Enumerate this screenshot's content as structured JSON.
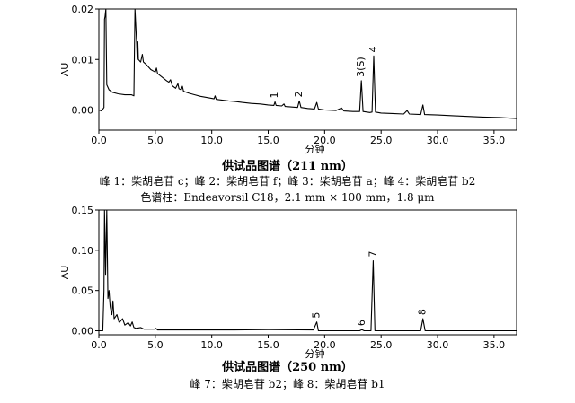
{
  "chart_data": [
    {
      "type": "line",
      "title": "供试品图谱（211 nm）",
      "xlabel": "分钟",
      "ylabel": "AU",
      "xlim": [
        0,
        37
      ],
      "ylim": [
        -0.004,
        0.02
      ],
      "x_ticks": [
        "0.0",
        "5.0",
        "10.0",
        "15.0",
        "20.0",
        "25.0",
        "30.0",
        "35.0"
      ],
      "y_ticks": [
        "0.00",
        "0.01",
        "0.02"
      ],
      "grid": false,
      "series": [
        {
          "values": [
            [
              0,
              0
            ],
            [
              0.25,
              -0.0002
            ],
            [
              0.45,
              0.0005
            ],
            [
              0.5,
              0.018
            ],
            [
              0.55,
              0.0185
            ],
            [
              0.62,
              0.02
            ],
            [
              0.7,
              0.005
            ],
            [
              0.9,
              0.004
            ],
            [
              1.2,
              0.0035
            ],
            [
              1.7,
              0.0032
            ],
            [
              2.3,
              0.003
            ],
            [
              2.9,
              0.003
            ],
            [
              3.1,
              0.0028
            ],
            [
              3.2,
              0.02
            ],
            [
              3.35,
              0.013
            ],
            [
              3.4,
              0.01
            ],
            [
              3.45,
              0.0135
            ],
            [
              3.5,
              0.01
            ],
            [
              3.7,
              0.0095
            ],
            [
              3.85,
              0.011
            ],
            [
              3.95,
              0.0095
            ],
            [
              4.2,
              0.009
            ],
            [
              4.6,
              0.008
            ],
            [
              5.0,
              0.0075
            ],
            [
              5.1,
              0.0083
            ],
            [
              5.2,
              0.0072
            ],
            [
              5.6,
              0.0065
            ],
            [
              6.0,
              0.0058
            ],
            [
              6.2,
              0.0055
            ],
            [
              6.35,
              0.006
            ],
            [
              6.5,
              0.0048
            ],
            [
              6.8,
              0.0043
            ],
            [
              7.0,
              0.0052
            ],
            [
              7.1,
              0.0042
            ],
            [
              7.3,
              0.004
            ],
            [
              7.4,
              0.0047
            ],
            [
              7.5,
              0.0037
            ],
            [
              8.0,
              0.0033
            ],
            [
              8.5,
              0.003
            ],
            [
              9.0,
              0.0027
            ],
            [
              9.5,
              0.0025
            ],
            [
              10.0,
              0.0023
            ],
            [
              10.2,
              0.0022
            ],
            [
              10.3,
              0.0028
            ],
            [
              10.4,
              0.0021
            ],
            [
              10.8,
              0.002
            ],
            [
              11.5,
              0.0018
            ],
            [
              12.0,
              0.0017
            ],
            [
              12.7,
              0.0015
            ],
            [
              13.5,
              0.0013
            ],
            [
              14.3,
              0.0012
            ],
            [
              15.0,
              0.001
            ],
            [
              15.5,
              0.0009
            ],
            [
              15.6,
              0.0016
            ],
            [
              15.7,
              0.0009
            ],
            [
              16.2,
              0.0008
            ],
            [
              16.4,
              0.0012
            ],
            [
              16.5,
              0.0007
            ],
            [
              17.0,
              0.0006
            ],
            [
              17.6,
              0.0005
            ],
            [
              17.75,
              0.0018
            ],
            [
              17.9,
              0.0005
            ],
            [
              18.5,
              0.0003
            ],
            [
              19.1,
              0.0002
            ],
            [
              19.3,
              0.0015
            ],
            [
              19.45,
              0.0002
            ],
            [
              20.0,
              0.0
            ],
            [
              21.0,
              -0.0001
            ],
            [
              21.5,
              0.0004
            ],
            [
              21.7,
              -0.0002
            ],
            [
              22.5,
              -0.0003
            ],
            [
              23.1,
              -0.0003
            ],
            [
              23.25,
              0.0058
            ],
            [
              23.4,
              -0.0003
            ],
            [
              24.0,
              -0.0005
            ],
            [
              24.2,
              -0.0004
            ],
            [
              24.35,
              0.0107
            ],
            [
              24.5,
              -0.0004
            ],
            [
              25.0,
              -0.0006
            ],
            [
              26.0,
              -0.0007
            ],
            [
              27.0,
              -0.0008
            ],
            [
              27.3,
              -0.0001
            ],
            [
              27.5,
              -0.0008
            ],
            [
              28.5,
              -0.0009
            ],
            [
              28.7,
              0.001
            ],
            [
              28.85,
              -0.0009
            ],
            [
              30.0,
              -0.001
            ],
            [
              32.0,
              -0.0012
            ],
            [
              34.0,
              -0.0014
            ],
            [
              35.5,
              -0.0015
            ],
            [
              37.0,
              -0.0017
            ]
          ]
        }
      ],
      "peaks": [
        {
          "label": "1",
          "x": 15.6
        },
        {
          "label": "2",
          "x": 17.75
        },
        {
          "label": "3(S)",
          "x": 23.25
        },
        {
          "label": "4",
          "x": 24.35
        }
      ],
      "captions": [
        "峰 1：柴胡皂苷 c；峰 2：柴胡皂苷 f；峰 3：柴胡皂苷 a；峰 4：柴胡皂苷 b2",
        "色谱柱：Endeavorsil C18，2.1 mm × 100 mm，1.8 μm"
      ]
    },
    {
      "type": "line",
      "title": "供试品图谱（250 nm）",
      "xlabel": "分钟",
      "ylabel": "AU",
      "xlim": [
        0,
        37
      ],
      "ylim": [
        -0.005,
        0.15
      ],
      "x_ticks": [
        "0.0",
        "5.0",
        "10.0",
        "15.0",
        "20.0",
        "25.0",
        "30.0",
        "35.0"
      ],
      "y_ticks": [
        "0.00",
        "0.05",
        "0.10",
        "0.15"
      ],
      "grid": false,
      "series": [
        {
          "values": [
            [
              0,
              0
            ],
            [
              0.35,
              0.0
            ],
            [
              0.45,
              0.05
            ],
            [
              0.5,
              0.15
            ],
            [
              0.6,
              0.07
            ],
            [
              0.7,
              0.15
            ],
            [
              0.8,
              0.04
            ],
            [
              0.9,
              0.05
            ],
            [
              1.0,
              0.03
            ],
            [
              1.15,
              0.02
            ],
            [
              1.25,
              0.037
            ],
            [
              1.35,
              0.015
            ],
            [
              1.6,
              0.02
            ],
            [
              1.8,
              0.01
            ],
            [
              2.1,
              0.015
            ],
            [
              2.3,
              0.007
            ],
            [
              2.6,
              0.01
            ],
            [
              2.8,
              0.006
            ],
            [
              2.95,
              0.011
            ],
            [
              3.1,
              0.004
            ],
            [
              3.3,
              0.003
            ],
            [
              3.7,
              0.004
            ],
            [
              4.0,
              0.002
            ],
            [
              5.0,
              0.002
            ],
            [
              5.05,
              0.003
            ],
            [
              5.2,
              0.001
            ],
            [
              6.0,
              0.001
            ],
            [
              8.0,
              0.001
            ],
            [
              10.0,
              0.001
            ],
            [
              12.0,
              0.001
            ],
            [
              15.0,
              0.0015
            ],
            [
              19.0,
              0.001
            ],
            [
              19.3,
              0.011
            ],
            [
              19.45,
              0.0
            ],
            [
              21.0,
              0.0
            ],
            [
              23.1,
              0.0
            ],
            [
              23.3,
              0.0015
            ],
            [
              23.5,
              0.0
            ],
            [
              24.1,
              0.0
            ],
            [
              24.3,
              0.087
            ],
            [
              24.45,
              0.0
            ],
            [
              25.0,
              0.0
            ],
            [
              27.5,
              0.0
            ],
            [
              28.5,
              0.0
            ],
            [
              28.7,
              0.015
            ],
            [
              28.9,
              0.0
            ],
            [
              30.0,
              0.0
            ],
            [
              33.0,
              0.0
            ],
            [
              37.0,
              0.0
            ]
          ]
        }
      ],
      "peaks": [
        {
          "label": "5",
          "x": 19.3
        },
        {
          "label": "6",
          "x": 23.3
        },
        {
          "label": "7",
          "x": 24.3
        },
        {
          "label": "8",
          "x": 28.7
        }
      ],
      "captions": [
        "峰 7：柴胡皂苷 b2；峰 8：柴胡皂苷 b1"
      ]
    }
  ]
}
